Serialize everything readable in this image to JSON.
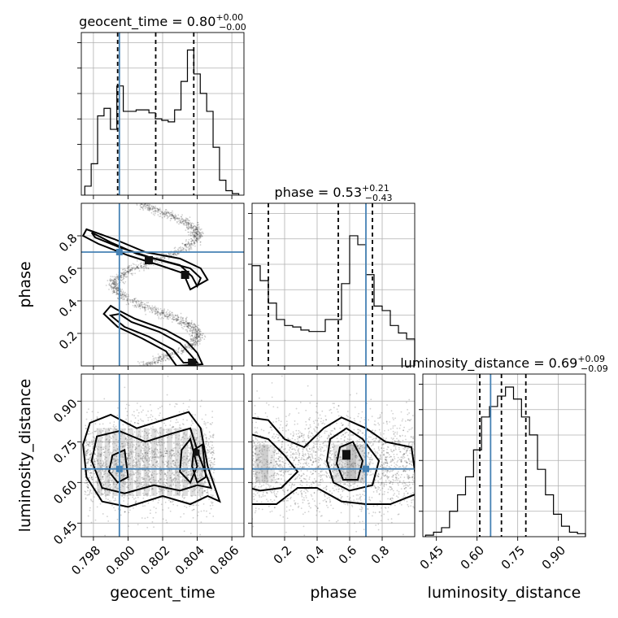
{
  "chart_data": {
    "type": "corner",
    "parameters": [
      "geocent_time",
      "phase",
      "luminosity_distance"
    ],
    "titles": [
      {
        "parameter": "geocent_time",
        "median": "0.80",
        "plus": "+0.00",
        "minus": "−0.00",
        "prefix": "geocent_time = "
      },
      {
        "parameter": "phase",
        "median": "0.53",
        "plus": "+0.21",
        "minus": "−0.43",
        "prefix": "phase = "
      },
      {
        "parameter": "luminosity_distance",
        "median": "0.69",
        "plus": "+0.09",
        "minus": "−0.09",
        "prefix": "luminosity_distance = "
      }
    ],
    "truths": {
      "geocent_time": 0.7995,
      "phase": 0.7,
      "luminosity_distance": 0.65
    },
    "ranges": {
      "geocent_time": [
        0.7973,
        0.8067
      ],
      "phase": [
        0.0,
        1.0
      ],
      "luminosity_distance": [
        0.4,
        1.0
      ]
    },
    "ticks": {
      "geocent_time": [
        "0.798",
        "0.800",
        "0.802",
        "0.804",
        "0.806"
      ],
      "phase": [
        "0.2",
        "0.4",
        "0.6",
        "0.8"
      ],
      "luminosity_distance": [
        "0.45",
        "0.60",
        "0.75",
        "0.90"
      ]
    },
    "quantiles": {
      "geocent_time": [
        0.7994,
        0.8016,
        0.8038
      ],
      "phase": [
        0.1,
        0.53,
        0.74
      ],
      "luminosity_distance": [
        0.61,
        0.69,
        0.78
      ]
    },
    "histograms": {
      "geocent_time": [
        0.06,
        0.21,
        0.53,
        0.58,
        0.44,
        0.73,
        0.56,
        0.56,
        0.57,
        0.57,
        0.55,
        0.51,
        0.5,
        0.49,
        0.57,
        0.76,
        0.97,
        0.81,
        0.68,
        0.56,
        0.32,
        0.1,
        0.03,
        0.01
      ],
      "phase": [
        0.67,
        0.57,
        0.42,
        0.31,
        0.27,
        0.26,
        0.24,
        0.23,
        0.23,
        0.31,
        0.31,
        0.55,
        0.87,
        0.81,
        0.61,
        0.4,
        0.37,
        0.27,
        0.22,
        0.18
      ],
      "luminosity_distance": [
        0.01,
        0.03,
        0.06,
        0.17,
        0.28,
        0.4,
        0.58,
        0.8,
        0.87,
        0.94,
        1.0,
        0.92,
        0.8,
        0.68,
        0.45,
        0.28,
        0.15,
        0.07,
        0.03,
        0.02
      ]
    },
    "xlabel": [
      "geocent_time",
      "phase",
      "luminosity_distance"
    ],
    "ylabel": [
      "phase",
      "luminosity_distance"
    ],
    "grid": true
  }
}
